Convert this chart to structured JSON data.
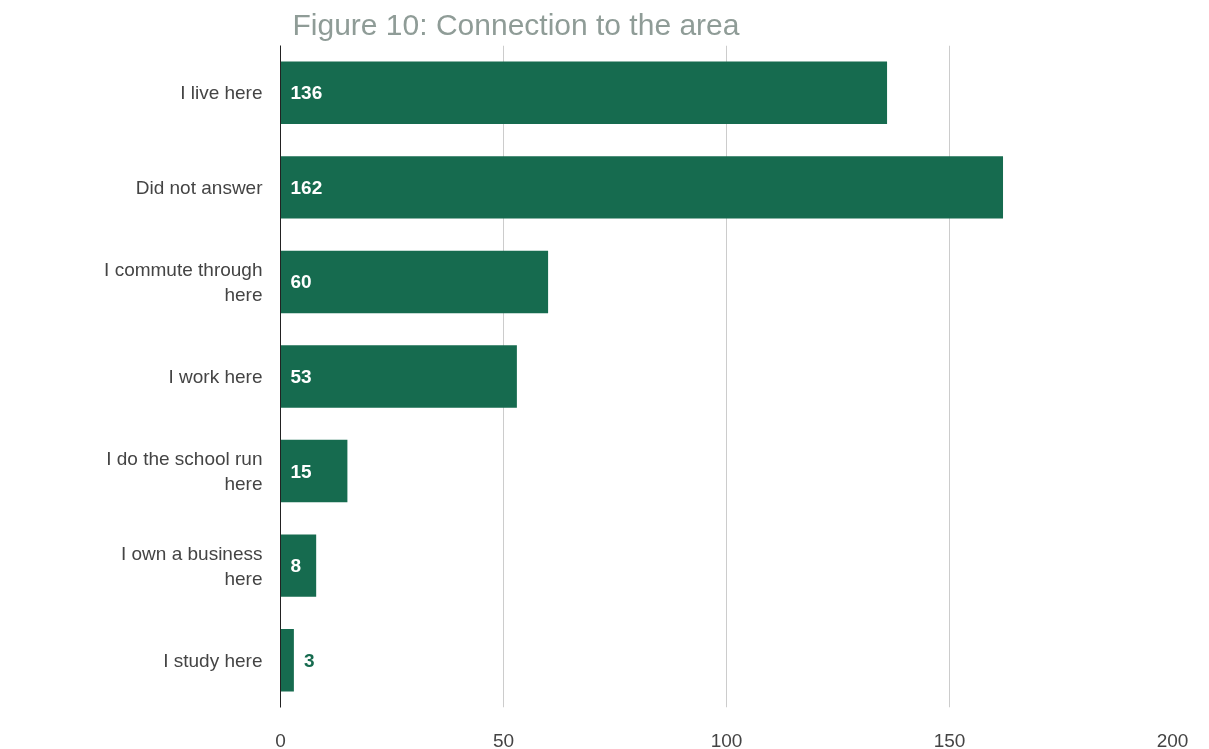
{
  "chart_data": {
    "type": "bar",
    "orientation": "horizontal",
    "title": "Figure 10: Connection to the area",
    "categories": [
      "I live here",
      "Did not answer",
      "I commute through here",
      "I work here",
      "I do the school run here",
      "I own a business here",
      "I study here"
    ],
    "values": [
      136,
      162,
      60,
      53,
      15,
      8,
      3
    ],
    "color": "#166b4f",
    "xlim": [
      0,
      200
    ],
    "xticks": [
      0,
      50,
      100,
      150,
      200
    ],
    "grid": "x",
    "data_labels": true
  }
}
